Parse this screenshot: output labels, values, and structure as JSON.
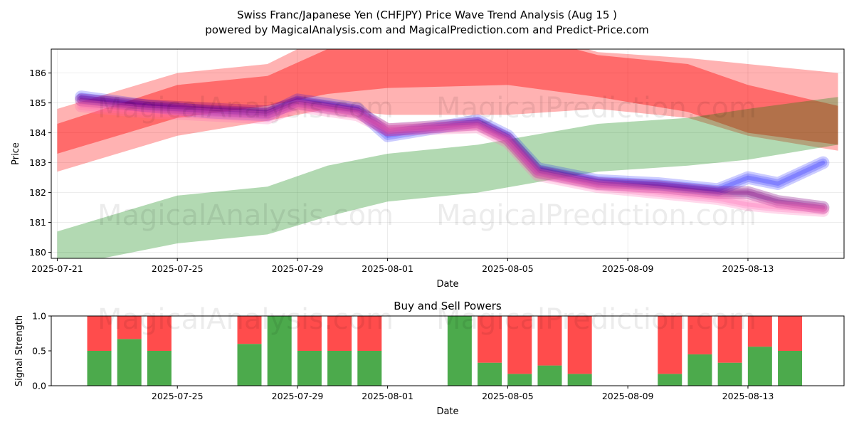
{
  "header": {
    "title_line1": "Swiss Franc/Japanese Yen (CHFJPY) Price Wave Trend Analysis (Aug 15 )",
    "title_line2": "powered by MagicalAnalysis.com and MagicalPrediction.com and Predict-Price.com"
  },
  "watermarks": [
    "MagicalAnalysis.com",
    "MagicalPrediction.com"
  ],
  "colors": {
    "red_band": "#ff0000",
    "green_band": "#008000",
    "blue_line": "#0000ff",
    "purple_line": "#800080",
    "pink_line": "#ff69b4",
    "buy_bar": "#4caa4c",
    "sell_bar": "#ff4c4c"
  },
  "chart_data": [
    {
      "type": "line",
      "title": "",
      "xlabel": "Date",
      "ylabel": "Price",
      "xlim_days": [
        -0.2,
        26.2
      ],
      "ylim": [
        179.8,
        186.8
      ],
      "x_origin_date": "2025-07-21",
      "xtick_days": [
        0,
        4,
        8,
        11,
        15,
        19,
        23
      ],
      "xtick_labels": [
        "2025-07-21",
        "2025-07-25",
        "2025-07-29",
        "2025-08-01",
        "2025-08-05",
        "2025-08-09",
        "2025-08-13"
      ],
      "yticks": [
        180,
        181,
        182,
        183,
        184,
        185,
        186
      ],
      "grid": true,
      "bands": [
        {
          "name": "red-band-outer",
          "color": "red",
          "opacity": 0.3,
          "x": [
            0,
            4,
            7,
            9,
            11,
            15,
            18,
            21,
            23,
            26
          ],
          "upper": [
            184.8,
            186.0,
            186.3,
            187.3,
            187.6,
            187.6,
            186.7,
            186.5,
            186.3,
            186.0
          ],
          "lower": [
            182.7,
            183.9,
            184.4,
            184.8,
            184.6,
            184.6,
            184.8,
            184.5,
            183.9,
            183.4
          ]
        },
        {
          "name": "red-band-inner",
          "color": "red",
          "opacity": 0.4,
          "x": [
            0,
            4,
            7,
            9,
            11,
            15,
            18,
            21,
            23,
            26
          ],
          "upper": [
            184.3,
            185.6,
            185.9,
            186.8,
            187.4,
            187.4,
            186.6,
            186.3,
            185.6,
            184.9
          ],
          "lower": [
            183.3,
            184.5,
            184.9,
            185.3,
            185.5,
            185.6,
            185.2,
            184.7,
            184.0,
            183.6
          ]
        },
        {
          "name": "green-band",
          "color": "green",
          "opacity": 0.3,
          "x": [
            0,
            4,
            7,
            9,
            11,
            14,
            18,
            21,
            23,
            26
          ],
          "upper": [
            180.7,
            181.9,
            182.2,
            182.9,
            183.3,
            183.6,
            184.3,
            184.5,
            184.8,
            185.2
          ],
          "lower": [
            179.5,
            180.3,
            180.6,
            181.2,
            181.7,
            182.0,
            182.7,
            182.9,
            183.1,
            183.6
          ]
        }
      ],
      "series": [
        {
          "name": "blue-wave",
          "color": "blue",
          "opacity": 0.2,
          "x": [
            0.8,
            3,
            5,
            7,
            8,
            10,
            11,
            14,
            15,
            16,
            18,
            20,
            22,
            23,
            24,
            25.5
          ],
          "y": [
            185.2,
            184.9,
            184.7,
            184.6,
            185.1,
            184.8,
            183.9,
            184.4,
            183.9,
            182.8,
            182.4,
            182.3,
            182.1,
            182.5,
            182.3,
            183.0
          ]
        },
        {
          "name": "purple-wave",
          "color": "purple",
          "opacity": 0.3,
          "x": [
            0.8,
            3,
            5,
            7,
            8,
            10,
            11,
            14,
            15,
            16,
            18,
            20,
            22,
            23,
            24,
            25.5
          ],
          "y": [
            185.1,
            184.9,
            184.8,
            184.7,
            185.0,
            184.7,
            184.1,
            184.3,
            183.8,
            182.7,
            182.3,
            182.2,
            182.0,
            182.0,
            181.7,
            181.5
          ]
        },
        {
          "name": "pink-wave",
          "color": "pink",
          "opacity": 0.25,
          "x": [
            0.8,
            3,
            5,
            7,
            8,
            10,
            11,
            14,
            15,
            16,
            18,
            20,
            22,
            23,
            24,
            25.5
          ],
          "y": [
            184.9,
            184.7,
            184.6,
            184.5,
            184.9,
            184.6,
            184.1,
            184.2,
            183.7,
            182.6,
            182.2,
            182.0,
            181.8,
            181.6,
            181.5,
            181.4
          ]
        }
      ]
    },
    {
      "type": "bar",
      "title": "Buy and Sell Powers",
      "xlabel": "Date",
      "ylabel": "Signal Strength",
      "xlim_days": [
        -0.2,
        26.2
      ],
      "ylim": [
        0,
        1
      ],
      "yticks": [
        0.0,
        0.5,
        1.0
      ],
      "ytick_labels": [
        "0.0",
        "0.5",
        "1.0"
      ],
      "xtick_days": [
        4,
        8,
        11,
        15,
        19,
        23
      ],
      "xtick_labels": [
        "2025-07-25",
        "2025-07-29",
        "2025-08-01",
        "2025-08-05",
        "2025-08-09",
        "2025-08-13"
      ],
      "grid": false,
      "x_days": [
        1.4,
        2.4,
        3.4,
        6.4,
        7.4,
        8.4,
        9.4,
        10.4,
        13.4,
        14.4,
        15.4,
        16.4,
        17.4,
        20.4,
        21.4,
        22.4,
        23.4,
        24.4
      ],
      "series": [
        {
          "name": "Buy",
          "color": "green",
          "values": [
            0.5,
            0.67,
            0.5,
            0.6,
            1.0,
            0.5,
            0.5,
            0.5,
            1.0,
            0.33,
            0.17,
            0.29,
            0.17,
            0.17,
            0.45,
            0.33,
            0.56,
            0.5
          ]
        },
        {
          "name": "Sell",
          "color": "red",
          "values": [
            0.5,
            0.33,
            0.5,
            0.4,
            0.0,
            0.5,
            0.5,
            0.5,
            0.0,
            0.67,
            0.83,
            0.71,
            0.83,
            0.83,
            0.55,
            0.67,
            0.44,
            0.5
          ]
        }
      ]
    }
  ]
}
